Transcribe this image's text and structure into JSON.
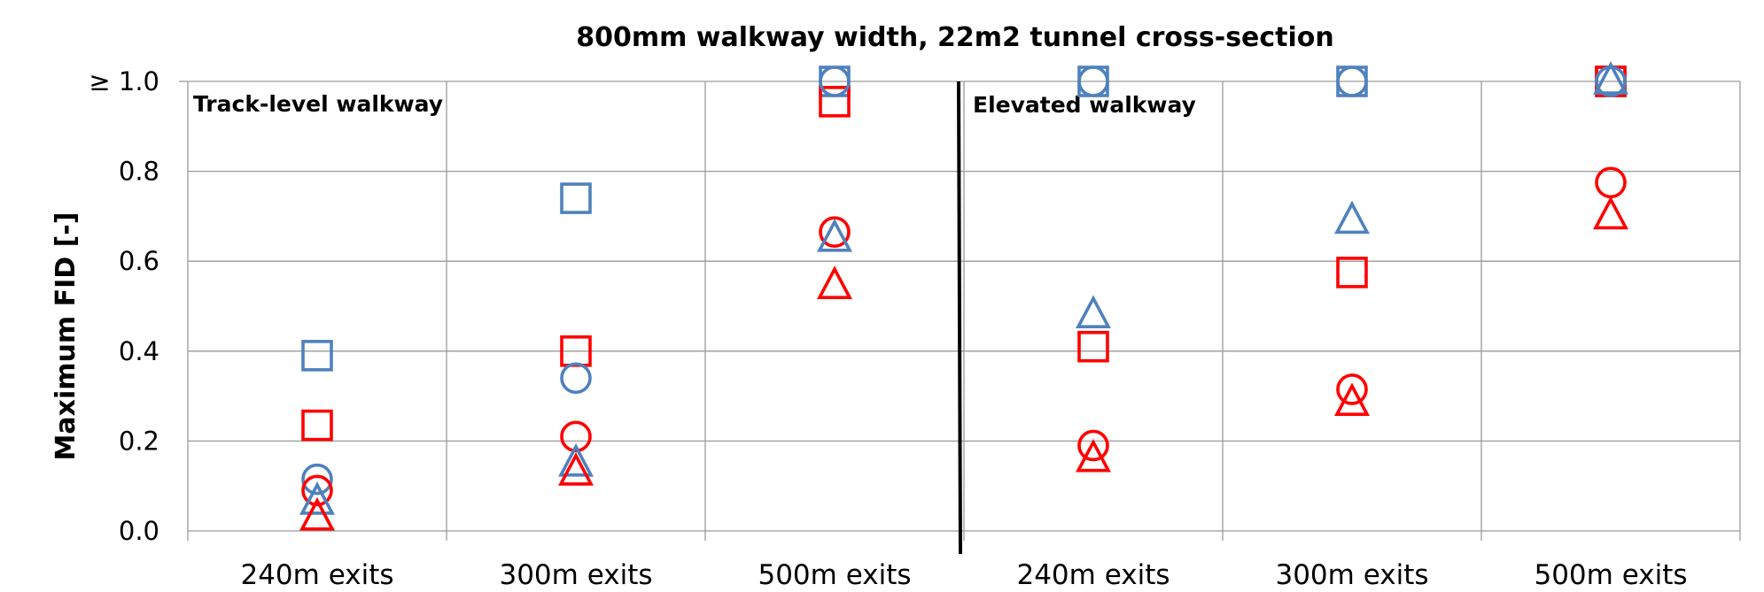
{
  "chart_data": {
    "type": "scatter",
    "title": "800mm walkway width, 22m2 tunnel cross-section",
    "ylabel": "Maximum FID [-]",
    "xlabel": "",
    "ylim": [
      0,
      1.0
    ],
    "y_ticks": [
      "0.0",
      "0.2",
      "0.4",
      "0.6",
      "0.8",
      "≥ 1.0"
    ],
    "grid": true,
    "legend": "none",
    "categories": [
      "240m exits",
      "300m exits",
      "500m exits",
      "240m exits",
      "300m exits",
      "500m exits"
    ],
    "panels": [
      {
        "label": "Track-level walkway",
        "categories": [
          0,
          1,
          2
        ]
      },
      {
        "label": "Elevated walkway",
        "categories": [
          3,
          4,
          5
        ]
      }
    ],
    "series": [
      {
        "marker": "square",
        "color": "#4F81BD",
        "values": [
          0.39,
          0.74,
          1.0,
          1.0,
          1.0,
          1.0
        ]
      },
      {
        "marker": "square",
        "color": "#FF0000",
        "values": [
          0.235,
          0.4,
          0.955,
          0.41,
          0.575,
          1.0
        ]
      },
      {
        "marker": "circle",
        "color": "#4F81BD",
        "values": [
          0.115,
          0.34,
          1.0,
          1.0,
          1.0,
          1.0
        ]
      },
      {
        "marker": "circle",
        "color": "#FF0000",
        "values": [
          0.09,
          0.21,
          0.665,
          0.19,
          0.315,
          0.775
        ]
      },
      {
        "marker": "triangle",
        "color": "#4F81BD",
        "values": [
          0.065,
          0.15,
          0.65,
          0.48,
          0.69,
          1.0
        ]
      },
      {
        "marker": "triangle",
        "color": "#FF0000",
        "values": [
          0.03,
          0.13,
          0.545,
          0.16,
          0.285,
          0.7
        ]
      }
    ]
  }
}
